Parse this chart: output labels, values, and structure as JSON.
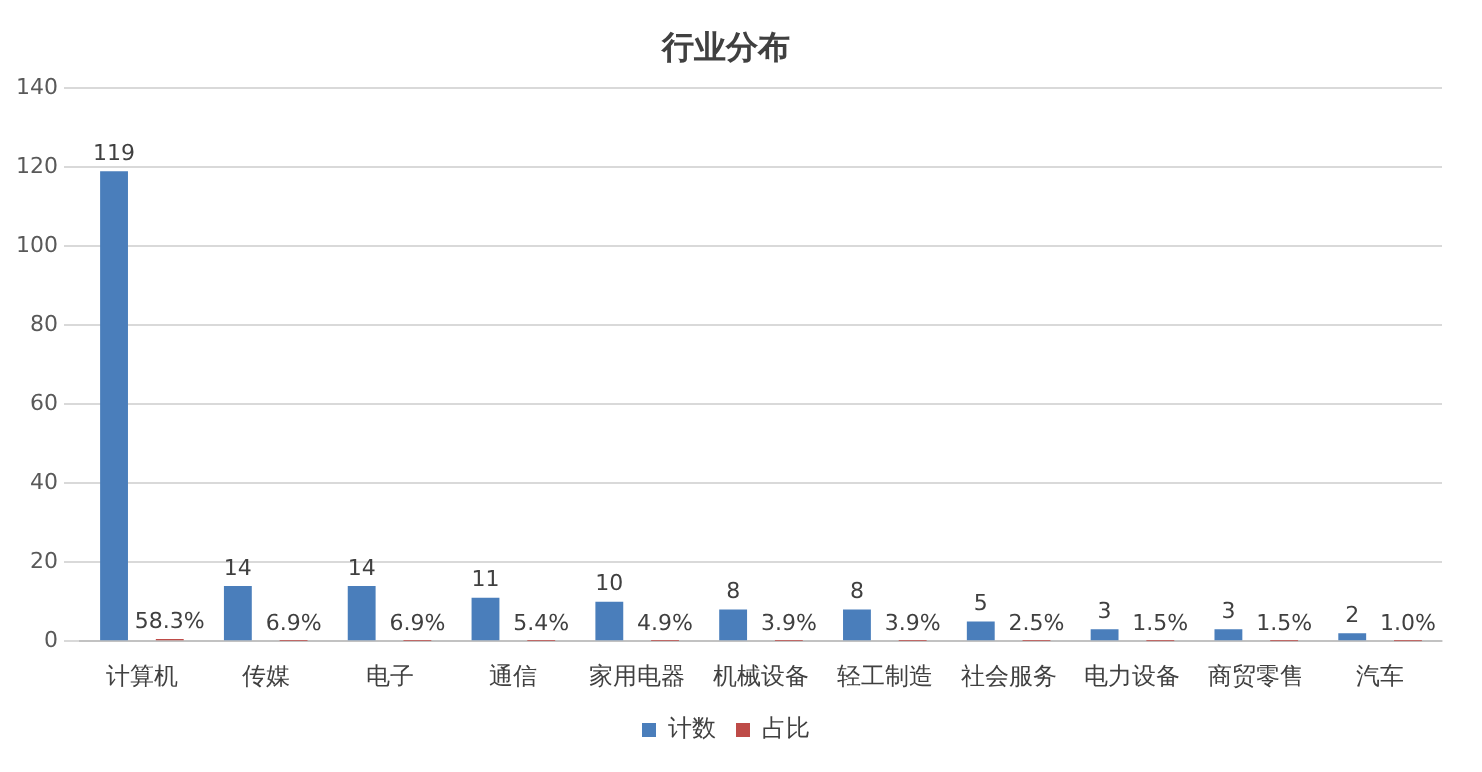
{
  "chart_data": {
    "type": "bar",
    "title": "行业分布",
    "categories": [
      "计算机",
      "传媒",
      "电子",
      "通信",
      "家用电器",
      "机械设备",
      "轻工制造",
      "社会服务",
      "电力设备",
      "商贸零售",
      "汽车"
    ],
    "series": [
      {
        "name": "计数",
        "color": "#4a7ebb",
        "values": [
          119,
          14,
          14,
          11,
          10,
          8,
          8,
          5,
          3,
          3,
          2
        ],
        "value_labels": [
          "119",
          "14",
          "14",
          "11",
          "10",
          "8",
          "8",
          "5",
          "3",
          "3",
          "2"
        ]
      },
      {
        "name": "占比",
        "color": "#be4b48",
        "values": [
          0.583,
          0.069,
          0.069,
          0.054,
          0.049,
          0.039,
          0.039,
          0.025,
          0.015,
          0.015,
          0.01
        ],
        "value_labels": [
          "58.3%",
          "6.9%",
          "6.9%",
          "5.4%",
          "4.9%",
          "3.9%",
          "3.9%",
          "2.5%",
          "1.5%",
          "1.5%",
          "1.0%"
        ]
      }
    ],
    "ylim": [
      0,
      140
    ],
    "yticks": [
      0,
      20,
      40,
      60,
      80,
      100,
      120,
      140
    ],
    "grid": "y",
    "legend": "bottom"
  }
}
